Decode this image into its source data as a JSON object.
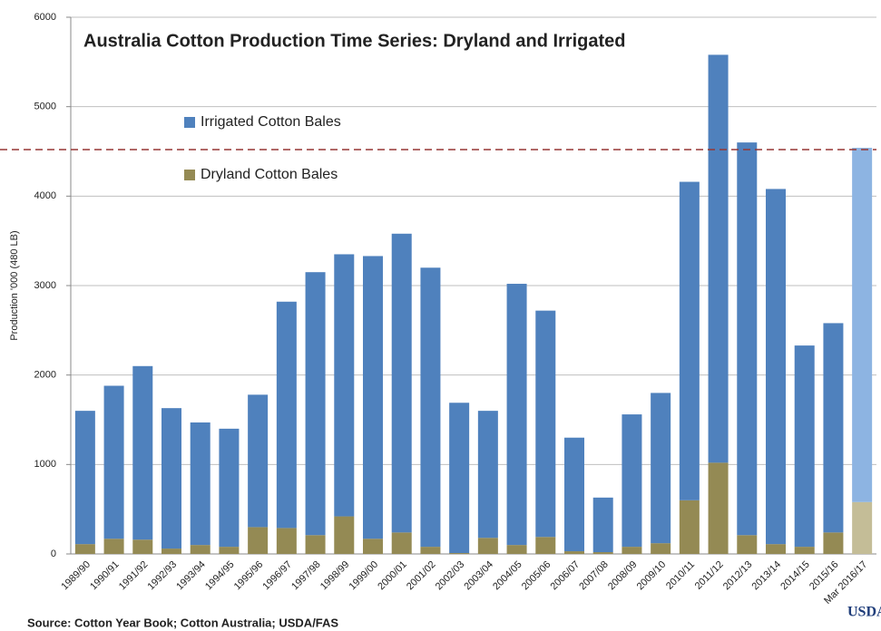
{
  "chart_data": {
    "type": "stacked_bar",
    "title": "Australia Cotton Production Time Series: Dryland and Irrigated",
    "y_label": "Production '000 (480 LB)",
    "source": "Source: Cotton Year Book; Cotton Australia; USDA/FAS",
    "logo": "USDA",
    "categories": [
      "1989/90",
      "1990/91",
      "1991/92",
      "1992/93",
      "1993/94",
      "1994/95",
      "1995/96",
      "1996/97",
      "1997/98",
      "1998/99",
      "1999/00",
      "2000/01",
      "2001/02",
      "2002/03",
      "2003/04",
      "2004/05",
      "2005/06",
      "2006/07",
      "2007/08",
      "2008/09",
      "2009/10",
      "2010/11",
      "2011/12",
      "2012/13",
      "2013/14",
      "2014/15",
      "2015/16",
      "Mar 2016/17"
    ],
    "series": [
      {
        "name": "Dryland Cotton Bales",
        "color": "#948a54",
        "highlight": {
          "index": 27,
          "color": "#c4bd97"
        },
        "values": [
          110,
          170,
          160,
          60,
          100,
          80,
          300,
          290,
          210,
          420,
          170,
          240,
          80,
          10,
          180,
          100,
          190,
          30,
          20,
          80,
          120,
          600,
          1020,
          210,
          110,
          80,
          240,
          580
        ]
      },
      {
        "name": "Irrigated Cotton Bales",
        "color": "#4f81bd",
        "highlight": {
          "index": 27,
          "color": "#8db4e2"
        },
        "values": [
          1490,
          1710,
          1940,
          1570,
          1370,
          1320,
          1480,
          2530,
          2940,
          2930,
          3160,
          3340,
          3120,
          1680,
          1420,
          2920,
          2530,
          1270,
          610,
          1480,
          1680,
          3560,
          4560,
          4390,
          3970,
          2250,
          2340,
          3960
        ]
      }
    ],
    "reference_line": {
      "value": 4520,
      "color": "#953735",
      "style": "dashed"
    },
    "ylim": [
      0,
      6000
    ],
    "yticks": [
      0,
      1000,
      2000,
      3000,
      4000,
      5000,
      6000
    ],
    "grid": true
  }
}
